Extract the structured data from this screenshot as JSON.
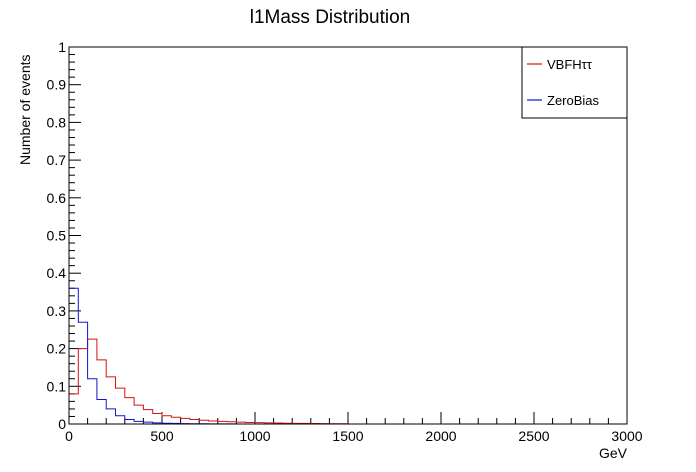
{
  "chart_data": {
    "type": "histogram-step",
    "title": "l1Mass Distribution",
    "xlabel": "GeV",
    "ylabel": "Number of events",
    "xlim": [
      0,
      3000
    ],
    "ylim": [
      0,
      1
    ],
    "x_ticks": [
      0,
      500,
      1000,
      1500,
      2000,
      2500,
      3000
    ],
    "y_ticks": [
      0,
      0.1,
      0.2,
      0.3,
      0.4,
      0.5,
      0.6,
      0.7,
      0.8,
      0.9,
      1
    ],
    "grid": false,
    "legend_position": "top-right",
    "bin_width": 50,
    "series": [
      {
        "name": "VBFHττ",
        "color": "#d21414",
        "values": [
          0.08,
          0.2,
          0.225,
          0.17,
          0.125,
          0.095,
          0.07,
          0.05,
          0.038,
          0.028,
          0.022,
          0.018,
          0.015,
          0.012,
          0.01,
          0.008,
          0.007,
          0.006,
          0.005,
          0.004,
          0.0035,
          0.003,
          0.0025,
          0.002,
          0.0018,
          0.0015,
          0.0012,
          0.001,
          0.0008,
          0.0006
        ]
      },
      {
        "name": "ZeroBias",
        "color": "#1414d2",
        "values": [
          0.36,
          0.27,
          0.12,
          0.065,
          0.04,
          0.022,
          0.012,
          0.007,
          0.005,
          0.003,
          0.002,
          0.0015,
          0.001,
          0.0008,
          0.0006,
          0.0004,
          0.0003,
          0.0002
        ]
      }
    ]
  }
}
